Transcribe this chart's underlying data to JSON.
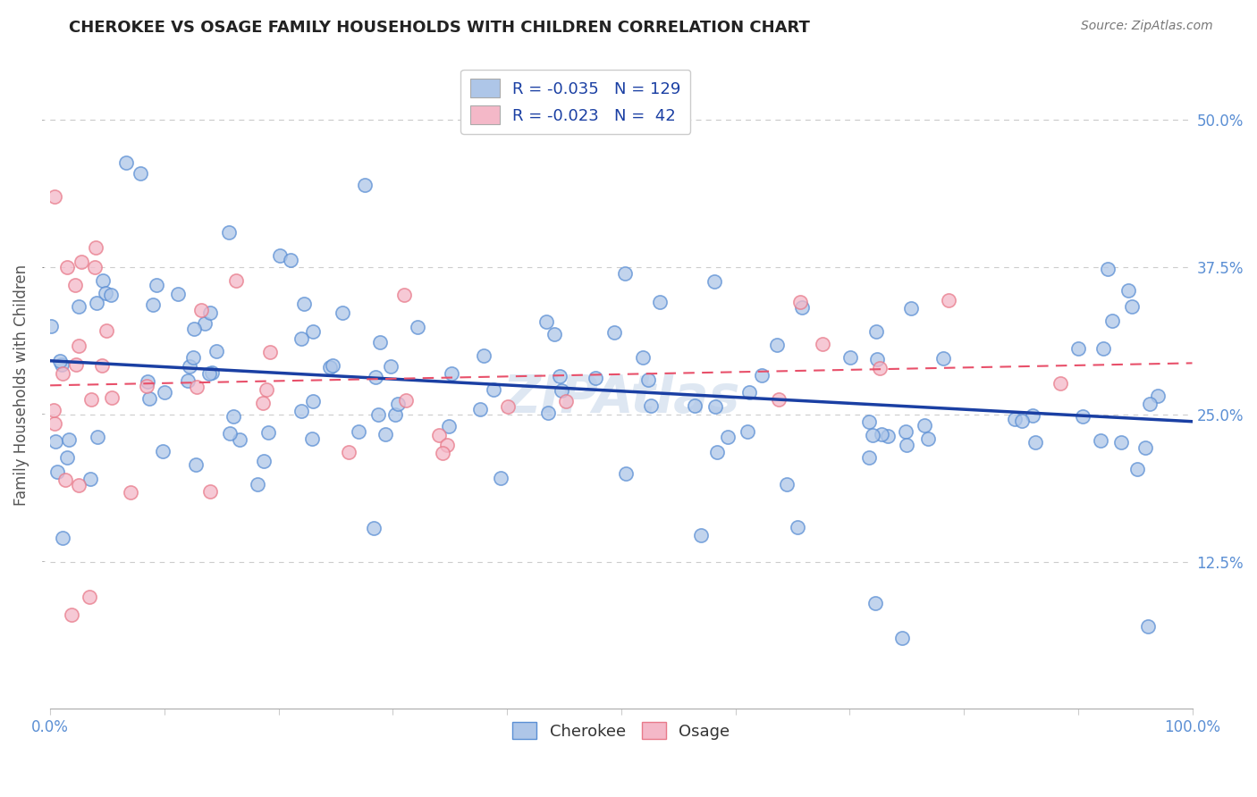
{
  "title": "CHEROKEE VS OSAGE FAMILY HOUSEHOLDS WITH CHILDREN CORRELATION CHART",
  "source": "Source: ZipAtlas.com",
  "ylabel": "Family Households with Children",
  "cherokee_R": -0.035,
  "cherokee_N": 129,
  "osage_R": -0.023,
  "osage_N": 42,
  "cherokee_color": "#aec6e8",
  "osage_color": "#f4b8c8",
  "cherokee_edge_color": "#5b8fd4",
  "osage_edge_color": "#e87a8a",
  "cherokee_line_color": "#1a3fa3",
  "osage_line_color": "#e8506a",
  "xlim": [
    0,
    100
  ],
  "ylim": [
    0,
    55
  ],
  "yticks": [
    12.5,
    25.0,
    37.5,
    50.0
  ],
  "xticks": [
    0,
    10,
    20,
    30,
    40,
    50,
    60,
    70,
    80,
    90,
    100
  ],
  "tick_color": "#5b8fd4",
  "background_color": "#ffffff",
  "grid_color": "#cccccc",
  "watermark": "ZIPAtlas",
  "watermark_color": "#c8d8ea"
}
